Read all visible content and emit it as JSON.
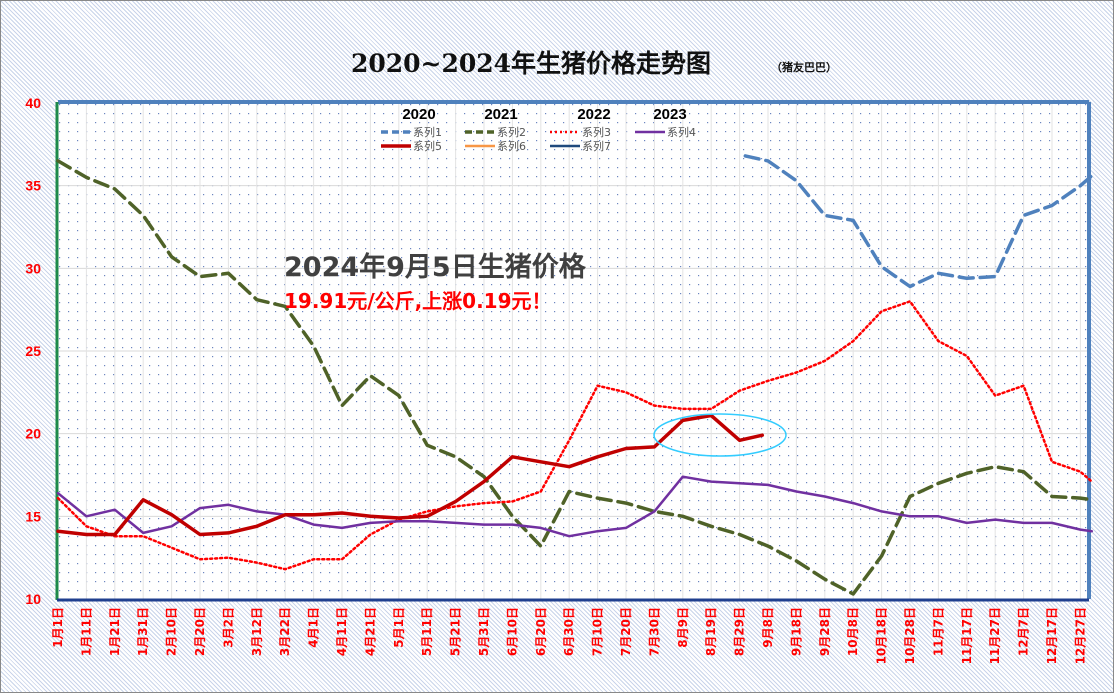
{
  "chart_data": {
    "type": "line",
    "title": "2020~2024年生猪价格走势图",
    "subtitle": "（猪友巴巴）",
    "ylim": [
      10,
      40
    ],
    "yticks": [
      "10",
      "15",
      "20",
      "25",
      "30",
      "35",
      "40"
    ],
    "x_labels": [
      "1月1日",
      "1月11日",
      "1月21日",
      "1月31日",
      "2月10日",
      "2月20日",
      "3月2日",
      "3月12日",
      "3月22日",
      "4月1日",
      "4月11日",
      "4月21日",
      "5月1日",
      "5月11日",
      "5月21日",
      "5月31日",
      "6月10日",
      "6月20日",
      "6月30日",
      "7月10日",
      "7月20日",
      "7月30日",
      "8月9日",
      "8月19日",
      "8月29日",
      "9月8日",
      "9月18日",
      "9月28日",
      "10月8日",
      "10月18日",
      "10月28日",
      "11月7日",
      "11月17日",
      "11月27日",
      "12月7日",
      "12月17日",
      "12月27日"
    ],
    "x_note": "points are [day_of_year_index, price_yuan_per_kg]; labels fall every 10 days starting at index 0",
    "year_labels": [
      "2020",
      "2021",
      "2022",
      "2023"
    ],
    "grid": true,
    "legend": "top-center",
    "series": [
      {
        "name": "系列1",
        "year": "2020",
        "color": "#4f81bd",
        "style": "dash",
        "points": [
          [
            242,
            36.8
          ],
          [
            250,
            36.5
          ],
          [
            260,
            35.3
          ],
          [
            270,
            33.2
          ],
          [
            280,
            32.9
          ],
          [
            290,
            30.1
          ],
          [
            300,
            28.9
          ],
          [
            310,
            29.7
          ],
          [
            320,
            29.4
          ],
          [
            330,
            29.5
          ],
          [
            340,
            33.2
          ],
          [
            350,
            33.8
          ],
          [
            360,
            35.0
          ],
          [
            364,
            35.6
          ]
        ]
      },
      {
        "name": "系列2",
        "year": "2021",
        "color": "#4f6228",
        "style": "dash",
        "points": [
          [
            0,
            36.5
          ],
          [
            10,
            35.5
          ],
          [
            20,
            34.8
          ],
          [
            30,
            33.2
          ],
          [
            40,
            30.7
          ],
          [
            50,
            29.5
          ],
          [
            60,
            29.7
          ],
          [
            70,
            28.1
          ],
          [
            80,
            27.7
          ],
          [
            90,
            25.3
          ],
          [
            100,
            21.7
          ],
          [
            110,
            23.5
          ],
          [
            120,
            22.3
          ],
          [
            130,
            19.3
          ],
          [
            140,
            18.6
          ],
          [
            150,
            17.4
          ],
          [
            160,
            15.0
          ],
          [
            170,
            13.2
          ],
          [
            180,
            16.5
          ],
          [
            190,
            16.1
          ],
          [
            200,
            15.8
          ],
          [
            210,
            15.3
          ],
          [
            220,
            15.0
          ],
          [
            230,
            14.4
          ],
          [
            240,
            13.9
          ],
          [
            250,
            13.2
          ],
          [
            260,
            12.3
          ],
          [
            270,
            11.2
          ],
          [
            280,
            10.3
          ],
          [
            290,
            12.6
          ],
          [
            300,
            16.2
          ],
          [
            310,
            17.0
          ],
          [
            320,
            17.6
          ],
          [
            330,
            18.0
          ],
          [
            340,
            17.7
          ],
          [
            350,
            16.2
          ],
          [
            360,
            16.1
          ],
          [
            364,
            16.0
          ]
        ]
      },
      {
        "name": "系列3",
        "year": "2022",
        "color": "#ff0000",
        "style": "dot",
        "points": [
          [
            0,
            16.1
          ],
          [
            10,
            14.4
          ],
          [
            20,
            13.8
          ],
          [
            30,
            13.8
          ],
          [
            40,
            13.1
          ],
          [
            50,
            12.4
          ],
          [
            60,
            12.5
          ],
          [
            70,
            12.2
          ],
          [
            80,
            11.8
          ],
          [
            90,
            12.4
          ],
          [
            100,
            12.4
          ],
          [
            110,
            13.9
          ],
          [
            120,
            14.8
          ],
          [
            130,
            15.3
          ],
          [
            140,
            15.6
          ],
          [
            150,
            15.8
          ],
          [
            160,
            15.9
          ],
          [
            170,
            16.5
          ],
          [
            180,
            19.6
          ],
          [
            190,
            22.9
          ],
          [
            200,
            22.5
          ],
          [
            210,
            21.7
          ],
          [
            220,
            21.5
          ],
          [
            230,
            21.5
          ],
          [
            240,
            22.6
          ],
          [
            250,
            23.2
          ],
          [
            260,
            23.7
          ],
          [
            270,
            24.4
          ],
          [
            280,
            25.6
          ],
          [
            290,
            27.4
          ],
          [
            300,
            28.0
          ],
          [
            310,
            25.6
          ],
          [
            320,
            24.7
          ],
          [
            330,
            22.3
          ],
          [
            340,
            22.9
          ],
          [
            350,
            18.3
          ],
          [
            360,
            17.7
          ],
          [
            364,
            17.1
          ]
        ]
      },
      {
        "name": "系列4",
        "year": "2023",
        "color": "#7030a0",
        "style": "solid",
        "points": [
          [
            0,
            16.4
          ],
          [
            10,
            15.0
          ],
          [
            20,
            15.4
          ],
          [
            30,
            14.0
          ],
          [
            40,
            14.4
          ],
          [
            50,
            15.5
          ],
          [
            60,
            15.7
          ],
          [
            70,
            15.3
          ],
          [
            80,
            15.1
          ],
          [
            90,
            14.5
          ],
          [
            100,
            14.3
          ],
          [
            110,
            14.6
          ],
          [
            120,
            14.7
          ],
          [
            130,
            14.7
          ],
          [
            140,
            14.6
          ],
          [
            150,
            14.5
          ],
          [
            160,
            14.5
          ],
          [
            170,
            14.3
          ],
          [
            180,
            13.8
          ],
          [
            190,
            14.1
          ],
          [
            200,
            14.3
          ],
          [
            210,
            15.3
          ],
          [
            220,
            17.4
          ],
          [
            230,
            17.1
          ],
          [
            240,
            17.0
          ],
          [
            250,
            16.9
          ],
          [
            260,
            16.5
          ],
          [
            270,
            16.2
          ],
          [
            280,
            15.8
          ],
          [
            290,
            15.3
          ],
          [
            300,
            15.0
          ],
          [
            310,
            15.0
          ],
          [
            320,
            14.6
          ],
          [
            330,
            14.8
          ],
          [
            340,
            14.6
          ],
          [
            350,
            14.6
          ],
          [
            360,
            14.2
          ],
          [
            364,
            14.1
          ]
        ]
      },
      {
        "name": "系列5",
        "year": "2024",
        "color": "#c00000",
        "style": "solid-thick",
        "points": [
          [
            0,
            14.1
          ],
          [
            10,
            13.9
          ],
          [
            20,
            13.9
          ],
          [
            30,
            16.0
          ],
          [
            40,
            15.1
          ],
          [
            50,
            13.9
          ],
          [
            60,
            14.0
          ],
          [
            70,
            14.4
          ],
          [
            80,
            15.1
          ],
          [
            90,
            15.1
          ],
          [
            100,
            15.2
          ],
          [
            110,
            15.0
          ],
          [
            120,
            14.9
          ],
          [
            130,
            15.0
          ],
          [
            140,
            15.9
          ],
          [
            150,
            17.1
          ],
          [
            160,
            18.6
          ],
          [
            170,
            18.3
          ],
          [
            180,
            18.0
          ],
          [
            190,
            18.6
          ],
          [
            200,
            19.1
          ],
          [
            210,
            19.2
          ],
          [
            220,
            20.8
          ],
          [
            230,
            21.1
          ],
          [
            240,
            19.6
          ],
          [
            248,
            19.91
          ]
        ]
      },
      {
        "name": "系列6",
        "color": "#f79646",
        "style": "solid",
        "points": []
      },
      {
        "name": "系列7",
        "color": "#1f497d",
        "style": "solid",
        "points": []
      }
    ],
    "annotation": {
      "headline": "2024年9月5日生猪价格",
      "detail": "19.91元/公斤,上涨0.19元！",
      "highlight_color": "#33ccff"
    }
  }
}
